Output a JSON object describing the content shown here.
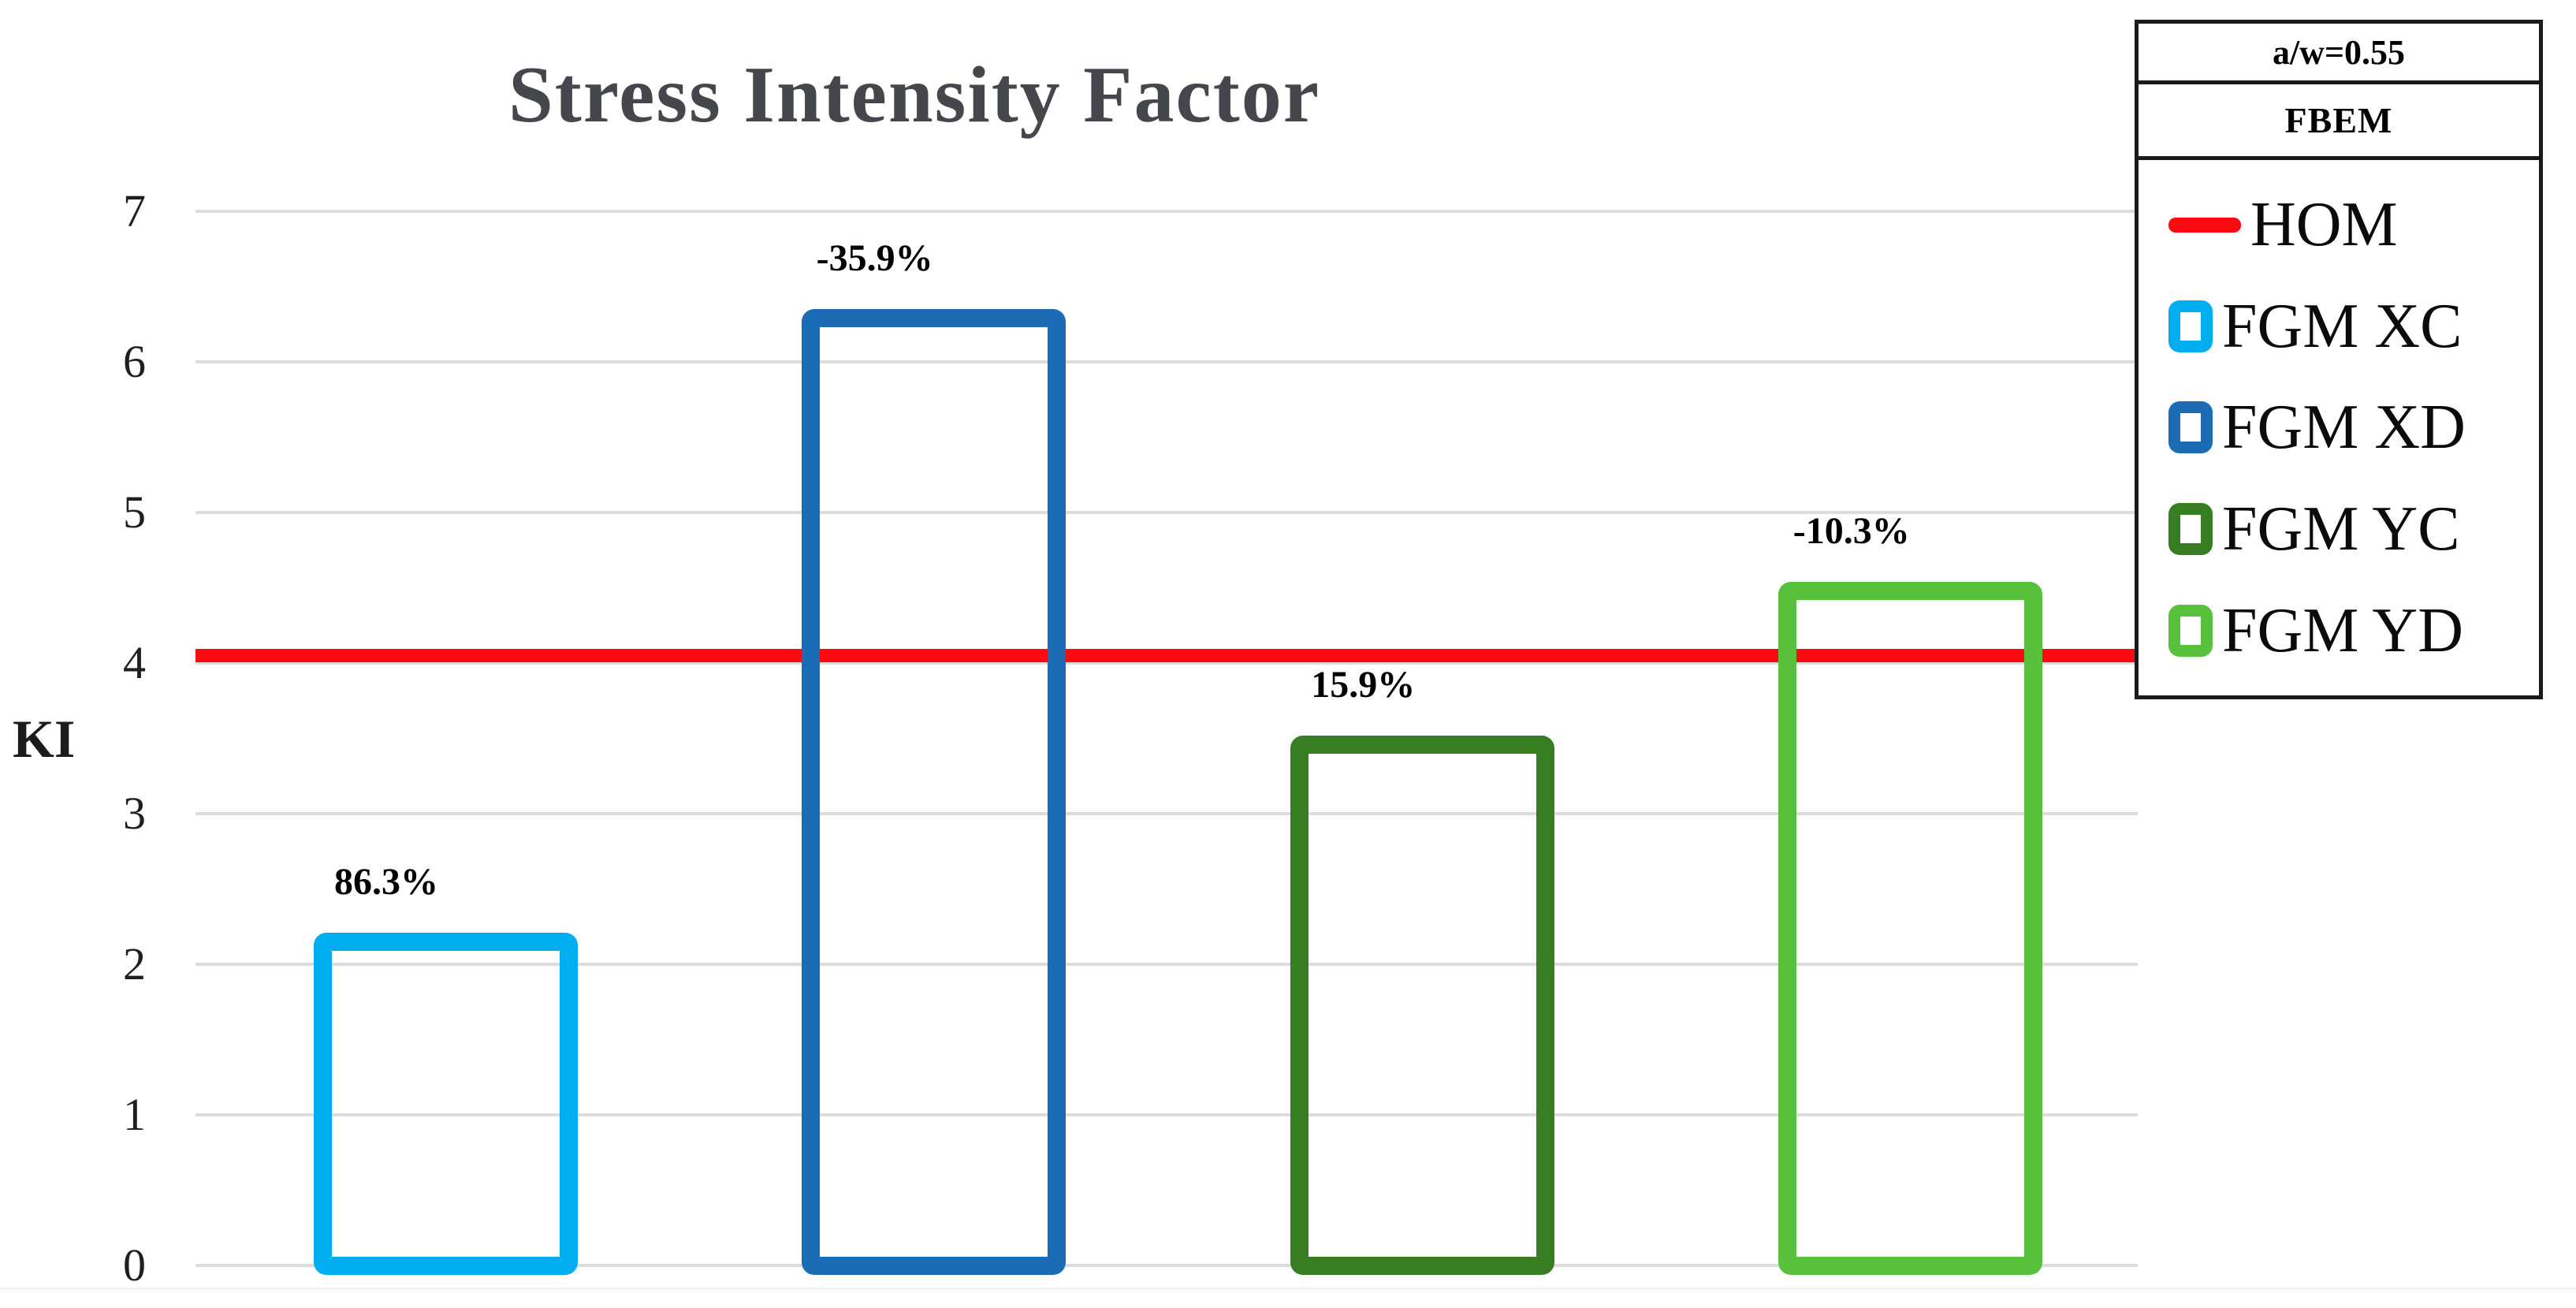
{
  "chart_data": {
    "type": "bar",
    "title": "Stress Intensity Factor",
    "ylabel": "KI",
    "ylim": [
      0,
      7
    ],
    "yticks": [
      0,
      1,
      2,
      3,
      4,
      5,
      6,
      7
    ],
    "grid": true,
    "categories": [
      "FGM XC",
      "FGM XD",
      "FGM YC",
      "FGM YD"
    ],
    "series": [
      {
        "name": "KI",
        "values": [
          2.21,
          6.35,
          3.52,
          4.54
        ]
      }
    ],
    "bar_labels": [
      "86.3%",
      "-35.9%",
      "15.9%",
      "-10.3%"
    ],
    "bar_colors": [
      "#00aeef",
      "#1b6cb4",
      "#377d22",
      "#57c13c"
    ],
    "bar_fill": "none",
    "reference_line": {
      "label": "HOM",
      "value": 4.05,
      "color": "#fa0b10"
    },
    "legend_position": "top-right"
  },
  "legend": {
    "header1": "a/w=0.55",
    "header2": "FBEM",
    "entries": [
      {
        "label": "HOM",
        "marker": "line",
        "color": "#fa0b10"
      },
      {
        "label": "FGM XC",
        "marker": "square",
        "color": "#00aeef"
      },
      {
        "label": "FGM XD",
        "marker": "square",
        "color": "#1b6cb4"
      },
      {
        "label": "FGM YC",
        "marker": "square",
        "color": "#377d22"
      },
      {
        "label": "FGM YD",
        "marker": "square",
        "color": "#57c13c"
      }
    ]
  }
}
